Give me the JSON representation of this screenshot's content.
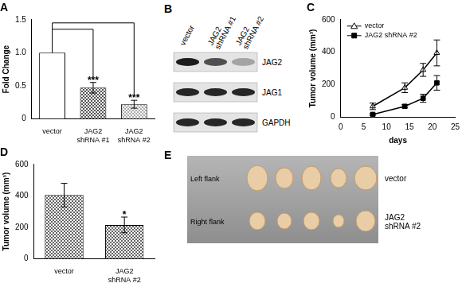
{
  "chart_data": [
    {
      "type": "bar",
      "title": "A",
      "categories": [
        "vector",
        [
          "JAG2",
          "shRNA #1"
        ],
        [
          "JAG2",
          "shRNA #2"
        ]
      ],
      "values": [
        1.0,
        0.47,
        0.22
      ],
      "errors": [
        null,
        0.08,
        0.06
      ],
      "colors": [
        "#ffffff",
        "#555555",
        "#aaaaaa"
      ],
      "annotations": [
        null,
        "***",
        "***"
      ],
      "ylabel": "Fold Change",
      "ylim": [
        0,
        1.5
      ],
      "yticks": [
        0,
        0.5,
        {
          "value": 1,
          "label": "1.0"
        },
        1.5
      ],
      "grid": false
    },
    {
      "type": "line",
      "title": "C",
      "xlabel": "days",
      "ylabel": "Tumor volume (mm³)",
      "series": [
        {
          "name": "vector",
          "color": "#000000",
          "marker": "triangle-open",
          "x": [
            7,
            14,
            18,
            21
          ],
          "values": [
            65,
            180,
            290,
            395
          ],
          "errors": [
            20,
            30,
            40,
            80
          ]
        },
        {
          "name": "JAG2 shRNA #2",
          "color": "#000000",
          "marker": "square",
          "x": [
            7,
            14,
            18,
            21
          ],
          "values": [
            15,
            65,
            115,
            210
          ],
          "errors": [
            5,
            10,
            25,
            45
          ]
        }
      ],
      "xlim": [
        0,
        25
      ],
      "xticks": [
        0,
        5,
        10,
        15,
        20,
        25
      ],
      "ylim": [
        0,
        600
      ],
      "yticks": [
        0,
        200,
        400,
        600
      ],
      "legend": "upper-left",
      "grid": false
    },
    {
      "type": "bar",
      "title": "D",
      "categories": [
        "vector",
        [
          "JAG2",
          "shRNA #2"
        ]
      ],
      "values": [
        405,
        215
      ],
      "errors": [
        75,
        50
      ],
      "colors": [
        "#666666",
        "#666666"
      ],
      "annotations": [
        null,
        "*"
      ],
      "ylabel": "Tumor volume (mm³)",
      "ylim": [
        0,
        600
      ],
      "yticks": [
        0,
        200,
        400,
        600
      ],
      "grid": false
    }
  ],
  "blot": {
    "title": "B",
    "lanes": [
      "vector",
      [
        "JAG2",
        "shRNA #1"
      ],
      [
        "JAG2",
        "shRNA #2"
      ]
    ],
    "rows": [
      {
        "label": "JAG2",
        "intensity": [
          0.95,
          0.7,
          0.3
        ]
      },
      {
        "label": "JAG1",
        "intensity": [
          0.9,
          0.9,
          0.9
        ]
      },
      {
        "label": "GAPDH",
        "intensity": [
          0.9,
          0.9,
          0.9
        ]
      }
    ]
  },
  "photo": {
    "title": "E",
    "rows": [
      {
        "label": "Left flank",
        "group": "vector"
      },
      {
        "label": "Right flank",
        "group": [
          "JAG2",
          "shRNA #2"
        ]
      }
    ]
  }
}
